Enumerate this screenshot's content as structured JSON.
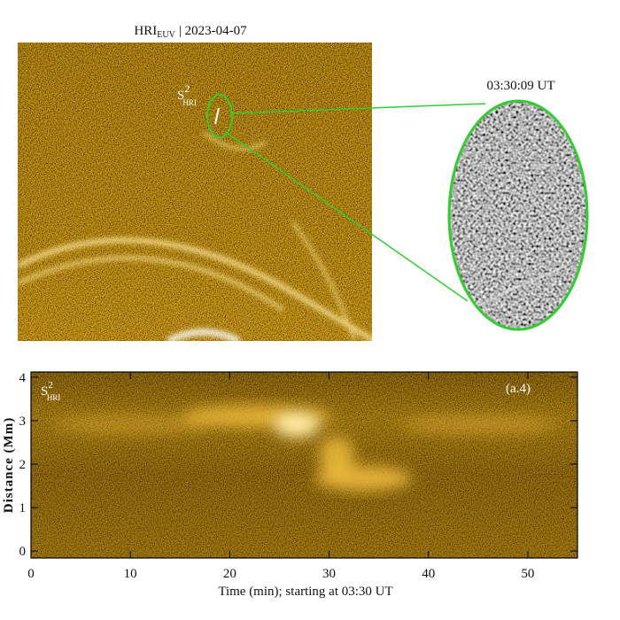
{
  "chart_data": [
    {
      "type": "image",
      "title_main": "HRI",
      "title_sub": "EUV",
      "title_date": "| 2023-04-07",
      "label_main": "S",
      "label_sup": "2",
      "label_sub": "HRI",
      "inset_time": "03:30:09 UT"
    },
    {
      "type": "time-distance",
      "label_main": "S",
      "label_sup": "2",
      "label_sub": "HRI",
      "panel": "(a.4)",
      "x_label": "Time (min); starting at 03:30 UT",
      "y_label": "Distance (Mm)",
      "xlim": [
        0,
        55
      ],
      "ylim": [
        -0.16,
        4.12
      ],
      "xticks": [
        0,
        10,
        20,
        30,
        40,
        50
      ],
      "yticks": [
        0,
        1,
        2,
        3,
        4
      ]
    }
  ]
}
